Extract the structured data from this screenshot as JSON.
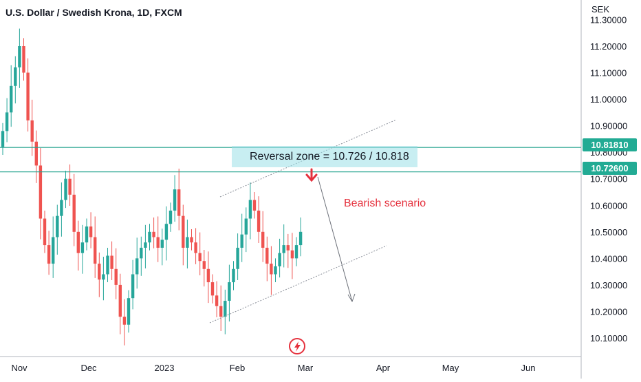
{
  "header": {
    "title": "U.S. Dollar / Swedish Krona, 1D, FXCM",
    "currency": "SEK"
  },
  "annotations": {
    "reversal_zone": "Reversal zone = 10.726 / 10.818",
    "scenario": "Bearish scenario"
  },
  "price_tags": [
    {
      "label": "10.81810",
      "value": 10.8181
    },
    {
      "label": "10.72600",
      "value": 10.726
    }
  ],
  "colors": {
    "up": "#26a69a",
    "down": "#ef5350",
    "level": "#22a28e",
    "scenario": "#e5313d",
    "tag": "#22ab94"
  },
  "icons": {
    "watermark": "lightning-bolt-icon",
    "arrow": "down-arrow-icon"
  },
  "chart_data": {
    "type": "candlestick",
    "title": "U.S. Dollar / Swedish Krona, 1D, FXCM",
    "ylabel": "SEK",
    "ylim": [
      10.03,
      11.3
    ],
    "y_ticks": [
      "11.30000",
      "11.20000",
      "11.10000",
      "11.00000",
      "10.90000",
      "10.80000",
      "10.70000",
      "10.60000",
      "10.50000",
      "10.40000",
      "10.30000",
      "10.20000",
      "10.10000"
    ],
    "x_ticks": [
      "Nov",
      "Dec",
      "2023",
      "Feb",
      "Mar",
      "Apr",
      "May",
      "Jun"
    ],
    "horizontal_levels": [
      10.8181,
      10.726
    ],
    "candles_close": [
      10.88,
      10.95,
      11.05,
      11.12,
      11.2,
      11.1,
      10.92,
      10.84,
      10.75,
      10.55,
      10.45,
      10.38,
      10.48,
      10.56,
      10.62,
      10.7,
      10.64,
      10.5,
      10.42,
      10.46,
      10.52,
      10.48,
      10.38,
      10.32,
      10.34,
      10.41,
      10.36,
      10.3,
      10.18,
      10.15,
      10.25,
      10.34,
      10.4,
      10.44,
      10.46,
      10.5,
      10.48,
      10.44,
      10.47,
      10.53,
      10.58,
      10.66,
      10.56,
      10.44,
      10.48,
      10.46,
      10.42,
      10.39,
      10.36,
      10.31,
      10.26,
      10.22,
      10.18,
      10.24,
      10.31,
      10.36,
      10.44,
      10.49,
      10.55,
      10.62,
      10.58,
      10.5,
      10.44,
      10.38,
      10.34,
      10.37,
      10.42,
      10.45,
      10.43,
      10.4,
      10.45,
      10.5
    ]
  }
}
